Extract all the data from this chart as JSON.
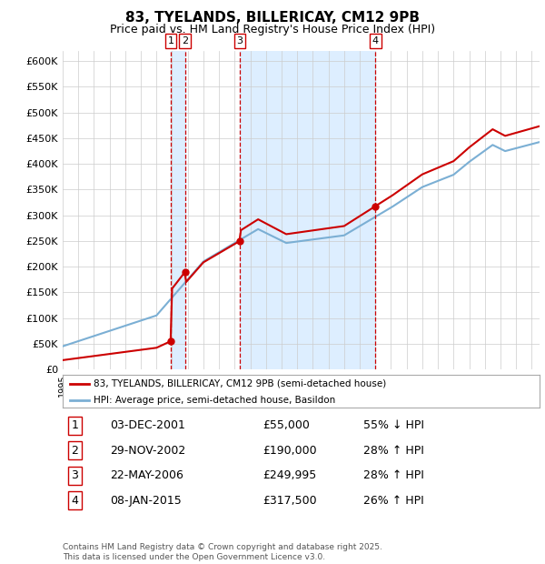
{
  "title": "83, TYELANDS, BILLERICAY, CM12 9PB",
  "subtitle": "Price paid vs. HM Land Registry's House Price Index (HPI)",
  "legend_line1": "83, TYELANDS, BILLERICAY, CM12 9PB (semi-detached house)",
  "legend_line2": "HPI: Average price, semi-detached house, Basildon",
  "yticks": [
    0,
    50000,
    100000,
    150000,
    200000,
    250000,
    300000,
    350000,
    400000,
    450000,
    500000,
    550000,
    600000
  ],
  "ytick_labels": [
    "£0",
    "£50K",
    "£100K",
    "£150K",
    "£200K",
    "£250K",
    "£300K",
    "£350K",
    "£400K",
    "£450K",
    "£500K",
    "£550K",
    "£600K"
  ],
  "sale_labels": [
    "1",
    "2",
    "3",
    "4"
  ],
  "sale_info": [
    {
      "num": "1",
      "date": "03-DEC-2001",
      "price": "£55,000",
      "hpi": "55% ↓ HPI"
    },
    {
      "num": "2",
      "date": "29-NOV-2002",
      "price": "£190,000",
      "hpi": "28% ↑ HPI"
    },
    {
      "num": "3",
      "date": "22-MAY-2006",
      "price": "£249,995",
      "hpi": "28% ↑ HPI"
    },
    {
      "num": "4",
      "date": "08-JAN-2015",
      "price": "£317,500",
      "hpi": "26% ↑ HPI"
    }
  ],
  "footnote": "Contains HM Land Registry data © Crown copyright and database right 2025.\nThis data is licensed under the Open Government Licence v3.0.",
  "price_line_color": "#cc0000",
  "hpi_line_color": "#7bafd4",
  "vline_color": "#cc0000",
  "shade_color": "#ddeeff",
  "background_color": "#ffffff",
  "grid_color": "#cccccc",
  "xlim": [
    1995,
    2025.5
  ],
  "ylim": [
    0,
    620000
  ]
}
